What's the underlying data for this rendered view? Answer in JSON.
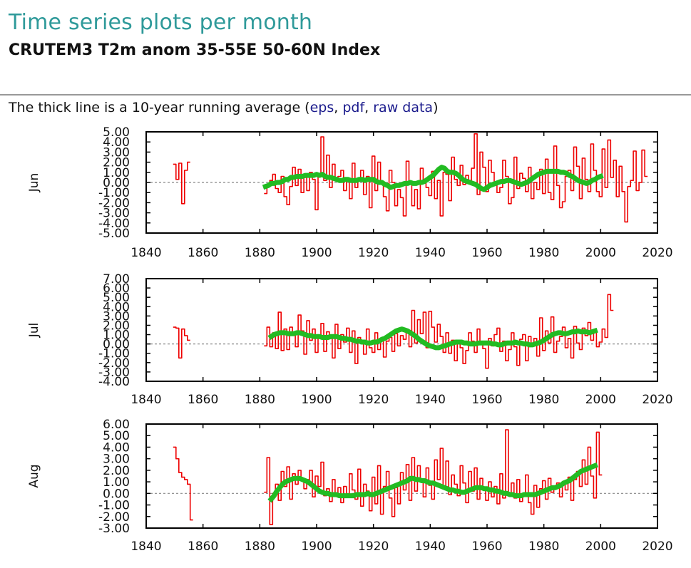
{
  "page": {
    "title": "Time series plots per month",
    "subtitle": "CRUTEM3 T2m anom 35-55E 50-60N Index",
    "caption_prefix": "The thick line is a 10-year running average (",
    "link_eps": "eps",
    "sep1": ", ",
    "link_pdf": "pdf",
    "sep2": ", ",
    "link_raw": "raw data",
    "caption_suffix": ")"
  },
  "colors": {
    "raw": "#ee0000",
    "smooth": "#22bb22",
    "zero_line": "#888888",
    "title": "#2f9a9a",
    "link": "#1a1a8c"
  },
  "chart_data": [
    {
      "type": "line",
      "ylabel": "Jun",
      "xlabel": "",
      "xlim": [
        1840,
        2020
      ],
      "ylim": [
        -5,
        5
      ],
      "xticks": [
        "1840",
        "1860",
        "1880",
        "1900",
        "1920",
        "1940",
        "1960",
        "1980",
        "2000",
        "2020"
      ],
      "yticks": [
        "5.00",
        "4.00",
        "3.00",
        "2.00",
        "1.00",
        "0.00",
        "-1.00",
        "-2.00",
        "-3.00",
        "-4.00",
        "-5.00"
      ],
      "zero_line": 0,
      "series": [
        {
          "name": "monthly anomaly",
          "style": "steps",
          "x_start": 1850,
          "values": [
            1.8,
            0.3,
            1.9,
            -2.1,
            1.2,
            2.0,
            null,
            null,
            null,
            null,
            null,
            null,
            null,
            null,
            null,
            null,
            null,
            null,
            null,
            null,
            null,
            null,
            null,
            null,
            null,
            null,
            null,
            null,
            null,
            null,
            null,
            null,
            -1.1,
            -0.3,
            0.2,
            0.8,
            -0.6,
            -1.0,
            0.6,
            -1.4,
            -2.2,
            -0.4,
            1.5,
            -0.3,
            1.3,
            -1.0,
            0.5,
            -0.8,
            1.0,
            0.3,
            -2.7,
            0.8,
            4.5,
            0.2,
            2.7,
            -0.5,
            1.8,
            0.4,
            0.6,
            1.2,
            -0.8,
            0.2,
            -1.6,
            1.9,
            -0.5,
            0.3,
            1.2,
            -1.2,
            0.6,
            -2.5,
            2.6,
            -0.8,
            2.0,
            0.1,
            -1.4,
            -2.8,
            1.2,
            0.0,
            -2.3,
            -0.7,
            -1.5,
            -3.3,
            2.1,
            -0.1,
            -2.3,
            -0.7,
            -2.6,
            1.4,
            0.0,
            -0.5,
            -1.3,
            1.1,
            -1.6,
            0.2,
            -3.3,
            1.0,
            0.8,
            -1.8,
            2.5,
            0.3,
            -0.3,
            1.7,
            -0.2,
            0.7,
            0.2,
            1.4,
            4.8,
            -1.2,
            3.0,
            1.5,
            -0.9,
            2.2,
            1.0,
            0.0,
            -1.0,
            -0.5,
            2.2,
            0.6,
            -2.1,
            -1.5,
            2.5,
            -0.6,
            0.9,
            0.4,
            -0.9,
            1.5,
            -1.6,
            0.0,
            -0.7,
            1.3,
            -1.1,
            2.3,
            -1.0,
            -1.7,
            3.6,
            -0.3,
            -2.5,
            -1.9,
            0.6,
            1.2,
            -0.8,
            3.5,
            1.6,
            -1.6,
            2.4,
            0.3,
            -0.9,
            3.8,
            1.2,
            -0.9,
            -1.4,
            3.3,
            -0.5,
            4.2,
            0.5,
            2.2,
            -1.4,
            1.6,
            -0.9,
            -3.9,
            -0.4,
            0.2,
            3.1,
            -0.8,
            0.0,
            3.2,
            0.6
          ]
        },
        {
          "name": "10-year running average",
          "style": "thick",
          "x_start": 1882,
          "values": [
            -0.4,
            -0.3,
            -0.1,
            -0.1,
            0.0,
            0.0,
            0.1,
            0.3,
            0.3,
            0.5,
            0.5,
            0.6,
            0.6,
            0.6,
            0.7,
            0.7,
            0.7,
            0.7,
            0.8,
            0.7,
            0.8,
            0.6,
            0.5,
            0.5,
            0.4,
            0.3,
            0.2,
            0.2,
            0.3,
            0.3,
            0.2,
            0.2,
            0.2,
            0.3,
            0.3,
            0.2,
            0.3,
            0.3,
            0.3,
            0.1,
            0.0,
            0.0,
            -0.2,
            -0.3,
            -0.5,
            -0.4,
            -0.3,
            -0.3,
            -0.2,
            -0.1,
            -0.1,
            0.0,
            -0.1,
            -0.1,
            0.0,
            0.0,
            0.1,
            0.3,
            0.5,
            0.7,
            1.0,
            1.3,
            1.5,
            1.4,
            1.1,
            1.0,
            1.0,
            0.9,
            0.7,
            0.4,
            0.2,
            0.1,
            0.0,
            -0.1,
            -0.2,
            -0.4,
            -0.6,
            -0.7,
            -0.5,
            -0.3,
            -0.2,
            -0.1,
            0.0,
            0.1,
            0.1,
            0.2,
            0.2,
            0.1,
            0.0,
            -0.1,
            -0.2,
            -0.1,
            0.0,
            0.2,
            0.4,
            0.6,
            0.8,
            0.9,
            1.0,
            1.1,
            1.1,
            1.1,
            1.1,
            1.1,
            1.0,
            1.0,
            0.9,
            0.7,
            0.6,
            0.4,
            0.2,
            0.1,
            0.0,
            -0.1,
            0.0,
            0.2,
            0.3,
            0.5,
            0.6
          ]
        }
      ]
    },
    {
      "type": "line",
      "ylabel": "Jul",
      "xlabel": "",
      "xlim": [
        1840,
        2020
      ],
      "ylim": [
        -4,
        7
      ],
      "xticks": [
        "1840",
        "1860",
        "1880",
        "1900",
        "1920",
        "1940",
        "1960",
        "1980",
        "2000",
        "2020"
      ],
      "yticks": [
        "7.00",
        "6.00",
        "5.00",
        "4.00",
        "3.00",
        "2.00",
        "1.00",
        "0.00",
        "-1.00",
        "-2.00",
        "-3.00",
        "-4.00"
      ],
      "zero_line": 0,
      "series": [
        {
          "name": "monthly anomaly",
          "style": "steps",
          "x_start": 1850,
          "values": [
            1.8,
            1.7,
            -1.5,
            1.6,
            0.9,
            0.4,
            null,
            null,
            null,
            null,
            null,
            null,
            null,
            null,
            null,
            null,
            null,
            null,
            null,
            null,
            null,
            null,
            null,
            null,
            null,
            null,
            null,
            null,
            null,
            null,
            null,
            null,
            -0.2,
            1.8,
            -0.3,
            1.2,
            -0.5,
            3.4,
            -0.7,
            1.6,
            -0.6,
            1.8,
            1.1,
            -0.3,
            3.1,
            1.4,
            -1.1,
            2.5,
            0.4,
            1.6,
            -0.9,
            0.8,
            2.2,
            -0.8,
            1.3,
            0.6,
            -1.5,
            2.1,
            -0.5,
            1.0,
            0.2,
            1.7,
            -0.9,
            1.4,
            -2.1,
            0.7,
            0.3,
            -1.1,
            1.6,
            -0.4,
            -0.9,
            1.2,
            -0.6,
            0.5,
            -1.4,
            0.3,
            0.7,
            -0.8,
            1.1,
            -0.2,
            0.9,
            0.5,
            1.4,
            -0.3,
            3.6,
            0.1,
            2.6,
            1.1,
            3.4,
            -0.4,
            3.5,
            1.8,
            0.2,
            2.1,
            0.8,
            -0.9,
            1.2,
            -1.0,
            0.4,
            -1.8,
            0.2,
            -0.4,
            -2.1,
            -0.7,
            1.2,
            0.3,
            -0.9,
            1.6,
            0.1,
            -0.5,
            -2.6,
            0.6,
            -0.2,
            1.0,
            1.7,
            -0.8,
            0.3,
            -1.8,
            -0.6,
            1.2,
            -0.3,
            -2.3,
            0.5,
            1.0,
            -1.8,
            0.8,
            -0.2,
            0.6,
            -1.3,
            2.8,
            -0.7,
            1.4,
            0.1,
            2.9,
            -0.9,
            0.3,
            0.8,
            1.8,
            -0.4,
            0.6,
            -1.5,
            1.9,
            0.1,
            -0.6,
            1.7,
            0.9,
            2.3,
            0.4,
            1.5,
            -0.3,
            0.2,
            1.6,
            0.7,
            5.3,
            3.6
          ]
        },
        {
          "name": "10-year running average",
          "style": "thick",
          "x_start": 1884,
          "values": [
            0.8,
            1.0,
            1.1,
            1.2,
            1.2,
            1.2,
            1.1,
            1.1,
            1.1,
            1.2,
            1.2,
            1.1,
            1.0,
            0.9,
            0.9,
            0.8,
            0.8,
            0.8,
            0.7,
            0.7,
            0.7,
            0.8,
            0.8,
            0.8,
            0.7,
            0.6,
            0.6,
            0.5,
            0.5,
            0.4,
            0.3,
            0.3,
            0.2,
            0.2,
            0.1,
            0.1,
            0.2,
            0.2,
            0.3,
            0.5,
            0.6,
            0.8,
            1.0,
            1.2,
            1.4,
            1.5,
            1.6,
            1.5,
            1.4,
            1.2,
            1.0,
            0.8,
            0.5,
            0.3,
            0.1,
            -0.1,
            -0.2,
            -0.3,
            -0.4,
            -0.4,
            -0.3,
            -0.2,
            -0.1,
            0.0,
            0.1,
            0.2,
            0.2,
            0.2,
            0.1,
            0.1,
            0.0,
            0.0,
            0.0,
            0.1,
            0.1,
            0.1,
            0.1,
            0.1,
            0.0,
            0.0,
            -0.1,
            -0.1,
            0.0,
            0.1,
            0.1,
            0.1,
            0.2,
            0.1,
            0.1,
            0.0,
            0.0,
            -0.1,
            -0.1,
            0.0,
            0.1,
            0.2,
            0.4,
            0.6,
            0.8,
            1.0,
            1.1,
            1.2,
            1.2,
            1.1,
            1.1,
            1.2,
            1.3,
            1.3,
            1.4,
            1.3,
            1.3,
            1.3,
            1.2,
            1.3,
            1.4
          ]
        }
      ]
    },
    {
      "type": "line",
      "ylabel": "Aug",
      "xlabel": "",
      "xlim": [
        1840,
        2020
      ],
      "ylim": [
        -3,
        6
      ],
      "xticks": [
        "1840",
        "1860",
        "1880",
        "1900",
        "1920",
        "1940",
        "1960",
        "1980",
        "2000",
        "2020"
      ],
      "yticks": [
        "6.00",
        "5.00",
        "4.00",
        "3.00",
        "2.00",
        "1.00",
        "0.00",
        "-1.00",
        "-2.00",
        "-3.00"
      ],
      "zero_line": 0,
      "series": [
        {
          "name": "monthly anomaly",
          "style": "steps",
          "x_start": 1850,
          "values": [
            4.0,
            3.0,
            1.8,
            1.4,
            1.2,
            0.8,
            -2.3,
            null,
            null,
            null,
            null,
            null,
            null,
            null,
            null,
            null,
            null,
            null,
            null,
            null,
            null,
            null,
            null,
            null,
            null,
            null,
            null,
            null,
            null,
            null,
            null,
            null,
            0.1,
            3.1,
            -2.7,
            0.0,
            0.8,
            -0.6,
            1.9,
            0.6,
            2.3,
            -0.5,
            1.7,
            0.8,
            2.0,
            1.3,
            0.4,
            1.2,
            2.0,
            -0.3,
            1.5,
            0.6,
            2.7,
            -0.2,
            0.4,
            -0.7,
            1.2,
            -0.1,
            0.5,
            -0.8,
            0.6,
            -0.2,
            1.7,
            0.3,
            -0.5,
            2.1,
            -1.1,
            0.8,
            0.2,
            -1.5,
            1.4,
            -0.9,
            2.4,
            -1.8,
            0.6,
            1.9,
            -0.4,
            -2.0,
            0.5,
            -0.9,
            1.8,
            0.3,
            2.5,
            -0.6,
            3.1,
            0.2,
            2.4,
            1.0,
            -0.3,
            2.2,
            0.7,
            -0.5,
            2.9,
            1.2,
            3.9,
            0.4,
            2.8,
            -0.1,
            1.6,
            0.8,
            -0.2,
            2.4,
            0.9,
            -0.8,
            1.9,
            0.2,
            2.2,
            -0.5,
            1.3,
            0.4,
            -0.6,
            1.0,
            -0.3,
            0.6,
            -0.9,
            1.7,
            -0.4,
            5.5,
            0.0,
            0.9,
            -0.4,
            1.2,
            -0.7,
            -0.2,
            1.6,
            -0.8,
            -1.8,
            0.7,
            -1.2,
            0.4,
            1.1,
            -0.5,
            1.3,
            0.1,
            0.4,
            0.9,
            -0.3,
            1.0,
            0.3,
            1.4,
            -0.6,
            1.2,
            1.9,
            0.6,
            2.9,
            0.8,
            4.0,
            1.5,
            -0.4,
            5.3,
            1.6
          ]
        },
        {
          "name": "10-year running average",
          "style": "thick",
          "x_start": 1884,
          "values": [
            -0.5,
            -0.2,
            0.2,
            0.5,
            0.8,
            1.0,
            1.1,
            1.2,
            1.3,
            1.3,
            1.3,
            1.2,
            1.1,
            1.0,
            0.8,
            0.6,
            0.4,
            0.2,
            0.1,
            0.0,
            0.0,
            -0.1,
            -0.1,
            -0.1,
            -0.2,
            -0.2,
            -0.2,
            -0.2,
            -0.2,
            -0.2,
            -0.1,
            -0.1,
            -0.1,
            -0.1,
            0.0,
            -0.1,
            -0.1,
            0.0,
            0.1,
            0.2,
            0.3,
            0.4,
            0.5,
            0.6,
            0.7,
            0.8,
            0.9,
            1.0,
            1.1,
            1.3,
            1.3,
            1.2,
            1.2,
            1.1,
            1.1,
            1.0,
            0.9,
            0.9,
            0.8,
            0.7,
            0.6,
            0.5,
            0.4,
            0.3,
            0.3,
            0.2,
            0.2,
            0.1,
            0.1,
            0.2,
            0.3,
            0.4,
            0.5,
            0.5,
            0.5,
            0.4,
            0.4,
            0.3,
            0.3,
            0.2,
            0.2,
            0.1,
            0.0,
            0.0,
            -0.1,
            -0.1,
            -0.2,
            -0.2,
            -0.2,
            -0.1,
            -0.1,
            -0.1,
            -0.1,
            -0.1,
            0.0,
            0.1,
            0.2,
            0.3,
            0.4,
            0.5,
            0.5,
            0.6,
            0.7,
            0.9,
            1.0,
            1.1,
            1.3,
            1.5,
            1.7,
            1.9,
            2.0,
            2.1,
            2.2,
            2.3,
            2.4
          ]
        }
      ]
    }
  ]
}
